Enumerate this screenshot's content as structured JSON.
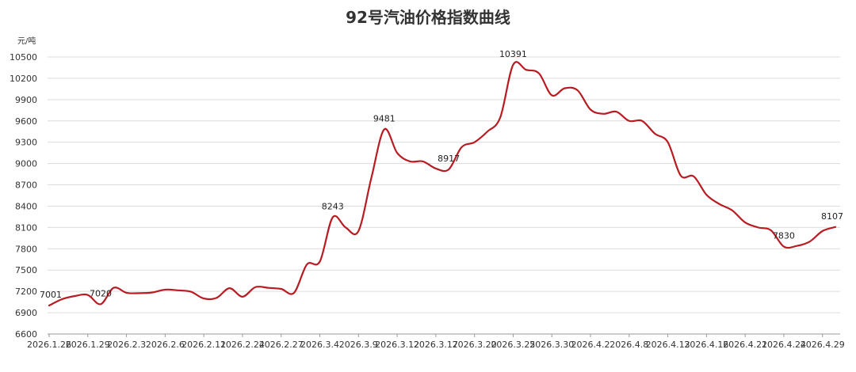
{
  "chart_data": {
    "type": "line",
    "title": "92号汽油价格指数曲线",
    "ylabel": "元/吨",
    "xlabel": "",
    "ylim": [
      6600,
      10500
    ],
    "yticks": [
      6600,
      6900,
      7200,
      7500,
      7800,
      8100,
      8400,
      8700,
      9000,
      9300,
      9600,
      9900,
      10200,
      10500
    ],
    "grid": true,
    "line_color": "#b81c22",
    "x_tick_labels": [
      "2026.1.26",
      "2026.1.29",
      "2026.2.3",
      "2026.2.6",
      "2026.2.11",
      "2026.2.24",
      "2026.2.27",
      "2026.3.4",
      "2026.3.9",
      "2026.3.12",
      "2026.3.17",
      "2026.3.20",
      "2026.3.25",
      "2026.3.30",
      "2026.4.2",
      "2026.4.8",
      "2026.4.13",
      "2026.4.16",
      "2026.4.21",
      "2026.4.24",
      "2026.4.29"
    ],
    "x_tick_positions": [
      0,
      3,
      6,
      9,
      12,
      15,
      18,
      21,
      24,
      27,
      30,
      33,
      36,
      39,
      42,
      45,
      48,
      51,
      54,
      57,
      60
    ],
    "series": [
      {
        "values": [
          7001,
          7090,
          7135,
          7150,
          7020,
          7250,
          7180,
          7175,
          7185,
          7225,
          7215,
          7195,
          7100,
          7110,
          7245,
          7125,
          7260,
          7250,
          7235,
          7180,
          7580,
          7620,
          8243,
          8100,
          8050,
          8800,
          9481,
          9150,
          9030,
          9030,
          8930,
          8917,
          9230,
          9300,
          9450,
          9650,
          10391,
          10320,
          10270,
          9960,
          10060,
          10030,
          9760,
          9700,
          9730,
          9600,
          9600,
          9420,
          9300,
          8830,
          8820,
          8560,
          8430,
          8340,
          8170,
          8100,
          8060,
          7830,
          7840,
          7900,
          8050,
          8107
        ]
      }
    ],
    "data_labels": [
      {
        "index": 0,
        "text": "7001"
      },
      {
        "index": 4,
        "text": "7020"
      },
      {
        "index": 22,
        "text": "8243"
      },
      {
        "index": 26,
        "text": "9481"
      },
      {
        "index": 31,
        "text": "8917"
      },
      {
        "index": 36,
        "text": "10391"
      },
      {
        "index": 57,
        "text": "7830"
      },
      {
        "index": 61,
        "text": "8107"
      }
    ]
  }
}
